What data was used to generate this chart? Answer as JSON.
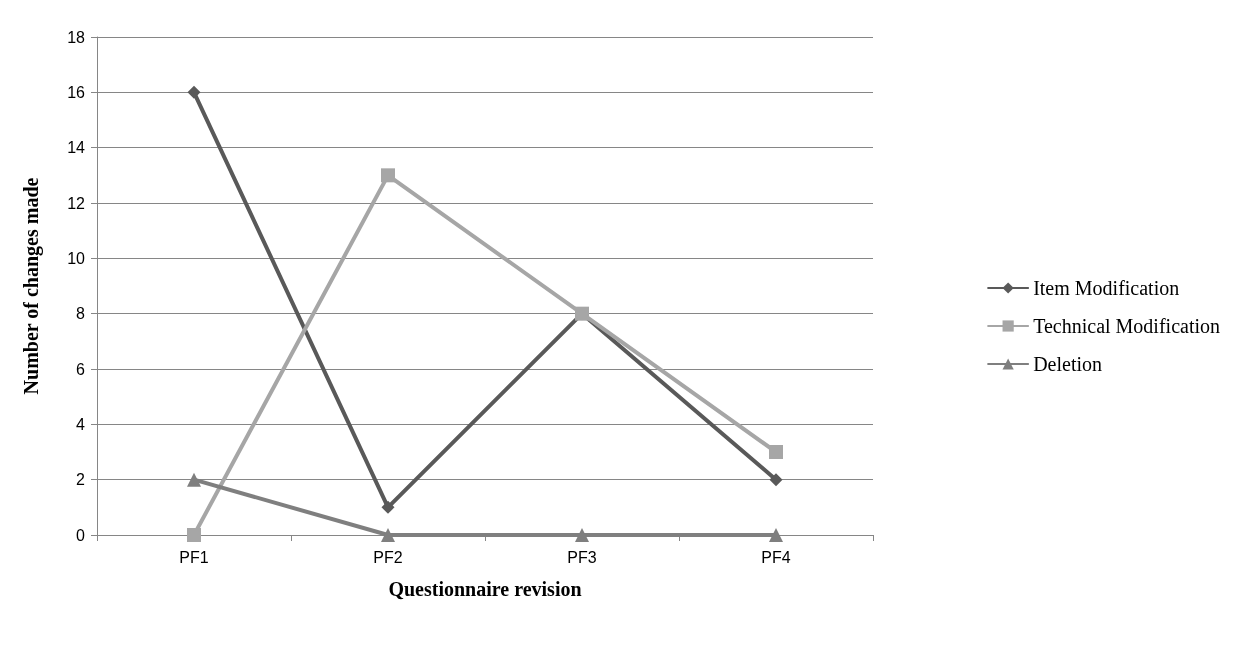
{
  "chart_data": {
    "type": "line",
    "xlabel": "Questionnaire revision",
    "ylabel": "Number of changes made",
    "categories": [
      "PF1",
      "PF2",
      "PF3",
      "PF4"
    ],
    "series": [
      {
        "name": "Item Modification",
        "color": "#595959",
        "values": [
          16,
          1,
          8,
          2
        ],
        "marker": "diamond"
      },
      {
        "name": "Technical Modification",
        "color": "#a6a6a6",
        "values": [
          0,
          13,
          8,
          3
        ],
        "marker": "square"
      },
      {
        "name": "Deletion",
        "color": "#7f7f7f",
        "values": [
          2,
          0,
          0,
          0
        ],
        "marker": "triangle"
      }
    ],
    "ylim": [
      0,
      18
    ],
    "yticks": [
      0,
      2,
      4,
      6,
      8,
      10,
      12,
      14,
      16,
      18
    ],
    "grid": "y",
    "legend": "right",
    "line_style": "solid"
  }
}
